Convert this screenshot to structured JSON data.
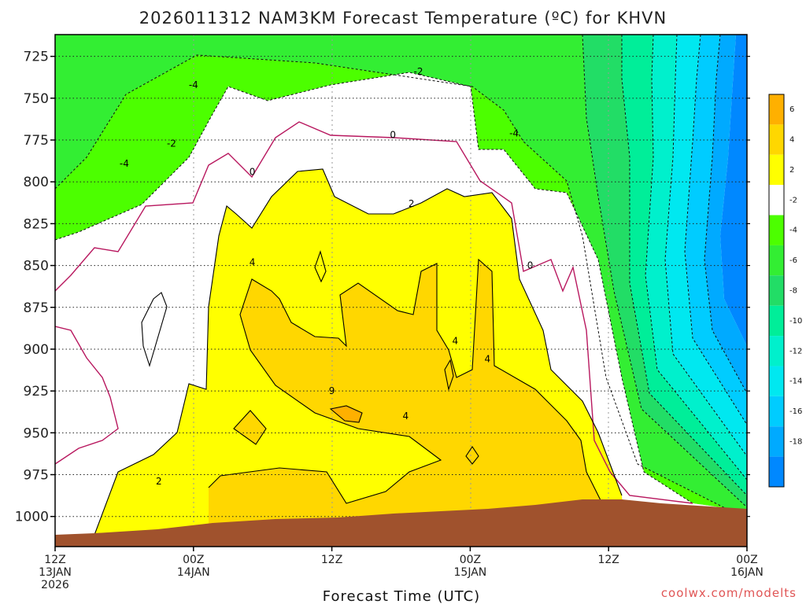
{
  "chart_data": {
    "type": "heatmap",
    "title": "2026011312 NAM3KM Forecast Temperature (ºC) for KHVN",
    "xlabel": "Forecast Time (UTC)",
    "ylabel": "",
    "credit": "coolwx.com/modelts",
    "y_axis": {
      "unit": "hPa",
      "inverted": true,
      "range": [
        1018,
        712
      ],
      "ticks": [
        725,
        750,
        775,
        800,
        825,
        850,
        875,
        900,
        925,
        950,
        975,
        1000
      ]
    },
    "x_axis": {
      "range_hours": [
        0,
        60
      ],
      "ticks": [
        {
          "hour": 0,
          "lines": [
            "12Z",
            "13JAN",
            "2026"
          ]
        },
        {
          "hour": 12,
          "lines": [
            "00Z",
            "14JAN"
          ]
        },
        {
          "hour": 24,
          "lines": [
            "12Z"
          ]
        },
        {
          "hour": 36,
          "lines": [
            "00Z",
            "15JAN"
          ]
        },
        {
          "hour": 48,
          "lines": [
            "12Z"
          ]
        },
        {
          "hour": 60,
          "lines": [
            "00Z",
            "16JAN"
          ]
        }
      ]
    },
    "grid": true,
    "colorbar": {
      "placement": "right",
      "labels": [
        "6",
        "4",
        "2",
        "-2",
        "-4",
        "-6",
        "-8",
        "-10",
        "-12",
        "-14",
        "-16",
        "-18"
      ],
      "bins": [
        {
          "lo": 8,
          "hi": 6,
          "color": "#ffb000"
        },
        {
          "lo": 6,
          "hi": 4,
          "color": "#ffd700"
        },
        {
          "lo": 4,
          "hi": 2,
          "color": "#ffff00"
        },
        {
          "lo": 2,
          "hi": -2,
          "color": "#ffffff"
        },
        {
          "lo": -2,
          "hi": -4,
          "color": "#4cff00"
        },
        {
          "lo": -4,
          "hi": -6,
          "color": "#33ee33"
        },
        {
          "lo": -6,
          "hi": -8,
          "color": "#22dd66"
        },
        {
          "lo": -8,
          "hi": -10,
          "color": "#00ee99"
        },
        {
          "lo": -10,
          "hi": -12,
          "color": "#00f0cc"
        },
        {
          "lo": -12,
          "hi": -14,
          "color": "#00e8f0"
        },
        {
          "lo": -14,
          "hi": -16,
          "color": "#00ccff"
        },
        {
          "lo": -16,
          "hi": -18,
          "color": "#00aaff"
        },
        {
          "lo": -18,
          "hi": -20,
          "color": "#0088ff"
        }
      ]
    },
    "ground_color": "#a0522d",
    "contour_labels": [
      {
        "text": "-4",
        "hour": 12.0,
        "p": 742
      },
      {
        "text": "-2",
        "hour": 31.5,
        "p": 734
      },
      {
        "text": "-2",
        "hour": 10.1,
        "p": 777
      },
      {
        "text": "-4",
        "hour": 6.0,
        "p": 789
      },
      {
        "text": "-4",
        "hour": 39.8,
        "p": 771
      },
      {
        "text": "0",
        "hour": 29.3,
        "p": 772
      },
      {
        "text": "0",
        "hour": 17.1,
        "p": 794
      },
      {
        "text": "2",
        "hour": 30.9,
        "p": 813
      },
      {
        "text": "0",
        "hour": 41.2,
        "p": 850
      },
      {
        "text": "4",
        "hour": 17.1,
        "p": 848
      },
      {
        "text": "4",
        "hour": 34.7,
        "p": 895
      },
      {
        "text": "4",
        "hour": 37.5,
        "p": 906
      },
      {
        "text": "9",
        "hour": 24.0,
        "p": 925
      },
      {
        "text": "4",
        "hour": 30.4,
        "p": 940
      },
      {
        "text": "2",
        "hour": 9.0,
        "p": 979
      }
    ]
  }
}
